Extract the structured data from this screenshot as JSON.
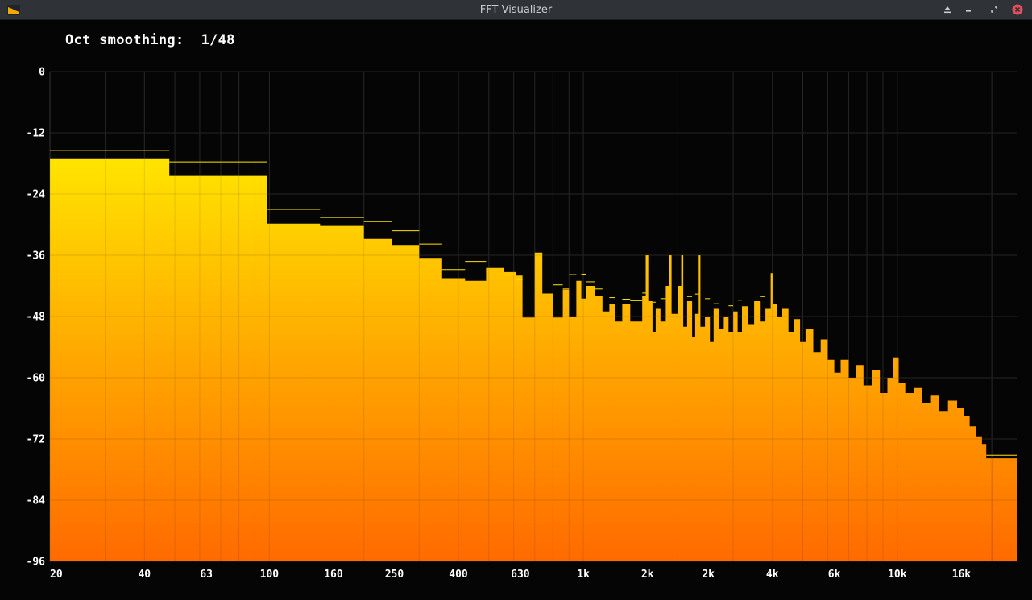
{
  "window": {
    "title": "FFT Visualizer",
    "buttons": [
      "eject-icon",
      "minimize-icon",
      "restore-icon",
      "close-icon"
    ],
    "close_color": "#e0505e"
  },
  "overlay": {
    "smoothing_label": "Oct smoothing:",
    "smoothing_value": "1/48"
  },
  "colors": {
    "gradient_top": "#ffe400",
    "gradient_bottom": "#ff6a00",
    "grid": "#2b2b2b",
    "background": "#050505"
  },
  "chart_data": {
    "type": "area",
    "x_scale": "log",
    "y_label_ticks": [
      "0",
      "-12",
      "-24",
      "-36",
      "-48",
      "-60",
      "-72",
      "-84",
      "-96"
    ],
    "y_tick_values": [
      0,
      -12,
      -24,
      -36,
      -48,
      -60,
      -72,
      -84,
      -96
    ],
    "ylim": [
      -96,
      0
    ],
    "xlim": [
      20,
      24000
    ],
    "x_tick_labels": [
      "20",
      "40",
      "63",
      "100",
      "160",
      "250",
      "400",
      "630",
      "1k",
      "2k",
      "2k",
      "4k",
      "6k",
      "10k",
      "16k"
    ],
    "x_tick_values": [
      20,
      40,
      63,
      100,
      160,
      250,
      400,
      630,
      1000,
      1600,
      2500,
      4000,
      6300,
      10000,
      16000
    ],
    "grid": true,
    "spectrum": [
      [
        20,
        -17
      ],
      [
        48,
        -17
      ],
      [
        48,
        -20.3
      ],
      [
        98,
        -20.3
      ],
      [
        98,
        -29.8
      ],
      [
        145,
        -29.8
      ],
      [
        145,
        -30.1
      ],
      [
        200,
        -30.1
      ],
      [
        200,
        -32.8
      ],
      [
        245,
        -32.8
      ],
      [
        245,
        -34
      ],
      [
        300,
        -34
      ],
      [
        300,
        -36.5
      ],
      [
        355,
        -36.5
      ],
      [
        355,
        -40.5
      ],
      [
        420,
        -40.5
      ],
      [
        420,
        -41
      ],
      [
        490,
        -41
      ],
      [
        490,
        -38.5
      ],
      [
        560,
        -38.5
      ],
      [
        560,
        -39.3
      ],
      [
        610,
        -39.3
      ],
      [
        610,
        -40
      ],
      [
        640,
        -40
      ],
      [
        640,
        -48.2
      ],
      [
        700,
        -48.2
      ],
      [
        700,
        -35.5
      ],
      [
        740,
        -35.5
      ],
      [
        740,
        -43.5
      ],
      [
        800,
        -43.5
      ],
      [
        800,
        -48.2
      ],
      [
        860,
        -48.2
      ],
      [
        860,
        -42.7
      ],
      [
        900,
        -42.7
      ],
      [
        900,
        -48
      ],
      [
        950,
        -48
      ],
      [
        950,
        -41
      ],
      [
        985,
        -41
      ],
      [
        985,
        -44.5
      ],
      [
        1020,
        -44.5
      ],
      [
        1020,
        -42
      ],
      [
        1090,
        -42
      ],
      [
        1090,
        -44
      ],
      [
        1150,
        -44
      ],
      [
        1150,
        -47
      ],
      [
        1210,
        -47
      ],
      [
        1210,
        -45.5
      ],
      [
        1260,
        -45.5
      ],
      [
        1260,
        -49
      ],
      [
        1330,
        -49
      ],
      [
        1330,
        -45.5
      ],
      [
        1410,
        -45.5
      ],
      [
        1410,
        -49
      ],
      [
        1540,
        -49
      ],
      [
        1540,
        -44
      ],
      [
        1580,
        -44
      ],
      [
        1580,
        -36
      ],
      [
        1610,
        -36
      ],
      [
        1610,
        -45
      ],
      [
        1660,
        -45
      ],
      [
        1660,
        -51
      ],
      [
        1700,
        -51
      ],
      [
        1700,
        -46.5
      ],
      [
        1760,
        -46.5
      ],
      [
        1760,
        -49
      ],
      [
        1830,
        -49
      ],
      [
        1830,
        -42
      ],
      [
        1880,
        -42
      ],
      [
        1880,
        -36
      ],
      [
        1910,
        -36
      ],
      [
        1910,
        -47.5
      ],
      [
        2000,
        -47.5
      ],
      [
        2000,
        -42
      ],
      [
        2050,
        -42
      ],
      [
        2050,
        -36
      ],
      [
        2080,
        -36
      ],
      [
        2080,
        -50
      ],
      [
        2140,
        -50
      ],
      [
        2140,
        -45
      ],
      [
        2220,
        -45
      ],
      [
        2220,
        -52
      ],
      [
        2270,
        -52
      ],
      [
        2270,
        -47.5
      ],
      [
        2330,
        -47.5
      ],
      [
        2330,
        -36
      ],
      [
        2360,
        -36
      ],
      [
        2360,
        -50
      ],
      [
        2440,
        -50
      ],
      [
        2440,
        -48
      ],
      [
        2530,
        -48
      ],
      [
        2530,
        -53
      ],
      [
        2600,
        -53
      ],
      [
        2600,
        -46.5
      ],
      [
        2700,
        -46.5
      ],
      [
        2700,
        -50.5
      ],
      [
        2800,
        -50.5
      ],
      [
        2800,
        -48
      ],
      [
        2900,
        -48
      ],
      [
        2900,
        -51
      ],
      [
        3000,
        -51
      ],
      [
        3000,
        -47
      ],
      [
        3100,
        -47
      ],
      [
        3100,
        -51
      ],
      [
        3200,
        -51
      ],
      [
        3200,
        -46
      ],
      [
        3350,
        -46
      ],
      [
        3350,
        -49.5
      ],
      [
        3500,
        -49.5
      ],
      [
        3500,
        -45
      ],
      [
        3650,
        -45
      ],
      [
        3650,
        -49
      ],
      [
        3800,
        -49
      ],
      [
        3800,
        -46.5
      ],
      [
        3950,
        -46.5
      ],
      [
        3950,
        -39.5
      ],
      [
        4010,
        -39.5
      ],
      [
        4010,
        -45.5
      ],
      [
        4150,
        -45.5
      ],
      [
        4150,
        -48
      ],
      [
        4300,
        -48
      ],
      [
        4300,
        -46.5
      ],
      [
        4500,
        -46.5
      ],
      [
        4500,
        -51
      ],
      [
        4700,
        -51
      ],
      [
        4700,
        -48.5
      ],
      [
        4900,
        -48.5
      ],
      [
        4900,
        -53
      ],
      [
        5100,
        -53
      ],
      [
        5100,
        -50.5
      ],
      [
        5400,
        -50.5
      ],
      [
        5400,
        -55
      ],
      [
        5700,
        -55
      ],
      [
        5700,
        -52.5
      ],
      [
        6000,
        -52.5
      ],
      [
        6000,
        -56.5
      ],
      [
        6300,
        -56.5
      ],
      [
        6300,
        -59
      ],
      [
        6600,
        -59
      ],
      [
        6600,
        -56.5
      ],
      [
        7000,
        -56.5
      ],
      [
        7000,
        -60
      ],
      [
        7400,
        -60
      ],
      [
        7400,
        -57.5
      ],
      [
        7800,
        -57.5
      ],
      [
        7800,
        -61.5
      ],
      [
        8300,
        -61.5
      ],
      [
        8300,
        -58.5
      ],
      [
        8800,
        -58.5
      ],
      [
        8800,
        -63
      ],
      [
        9300,
        -63
      ],
      [
        9300,
        -60
      ],
      [
        9700,
        -60
      ],
      [
        9700,
        -56
      ],
      [
        10100,
        -56
      ],
      [
        10100,
        -61
      ],
      [
        10600,
        -61
      ],
      [
        10600,
        -63
      ],
      [
        11300,
        -63
      ],
      [
        11300,
        -62
      ],
      [
        12000,
        -62
      ],
      [
        12000,
        -65
      ],
      [
        12800,
        -65
      ],
      [
        12800,
        -63.5
      ],
      [
        13600,
        -63.5
      ],
      [
        13600,
        -66.5
      ],
      [
        14500,
        -66.5
      ],
      [
        14500,
        -64.5
      ],
      [
        15500,
        -64.5
      ],
      [
        15500,
        -66
      ],
      [
        16300,
        -66
      ],
      [
        16300,
        -67.5
      ],
      [
        17000,
        -67.5
      ],
      [
        17000,
        -69.5
      ],
      [
        17800,
        -69.5
      ],
      [
        17800,
        -71.5
      ],
      [
        18600,
        -71.5
      ],
      [
        18600,
        -73
      ],
      [
        19200,
        -73
      ],
      [
        19200,
        -75.8
      ],
      [
        24000,
        -75.8
      ]
    ],
    "peaks": [
      [
        20,
        48,
        -15.5
      ],
      [
        48,
        98,
        -17.7
      ],
      [
        98,
        145,
        -27
      ],
      [
        145,
        200,
        -28.6
      ],
      [
        200,
        245,
        -29.4
      ],
      [
        245,
        300,
        -31.2
      ],
      [
        300,
        355,
        -33.8
      ],
      [
        355,
        420,
        -38.8
      ],
      [
        420,
        490,
        -37.2
      ],
      [
        490,
        560,
        -37.5
      ],
      [
        560,
        610,
        -39.8
      ],
      [
        610,
        640,
        -40.8
      ],
      [
        700,
        740,
        -35.8
      ],
      [
        800,
        860,
        -41.8
      ],
      [
        860,
        900,
        -42.5
      ],
      [
        900,
        950,
        -39.8
      ],
      [
        985,
        1020,
        -39.7
      ],
      [
        1020,
        1090,
        -41.2
      ],
      [
        1090,
        1150,
        -42.6
      ],
      [
        1210,
        1260,
        -44.3
      ],
      [
        1330,
        1410,
        -44.6
      ],
      [
        1410,
        1540,
        -44.9
      ],
      [
        1540,
        1580,
        -43.4
      ],
      [
        1660,
        1700,
        -45.2
      ],
      [
        1760,
        1830,
        -44.5
      ],
      [
        2140,
        2220,
        -44.1
      ],
      [
        2270,
        2330,
        -43.6
      ],
      [
        2440,
        2530,
        -44.5
      ],
      [
        2600,
        2700,
        -45.5
      ],
      [
        2900,
        3000,
        -45.9
      ],
      [
        3100,
        3200,
        -44.8
      ],
      [
        3650,
        3800,
        -44.1
      ],
      [
        19200,
        24000,
        -75.2
      ]
    ]
  }
}
